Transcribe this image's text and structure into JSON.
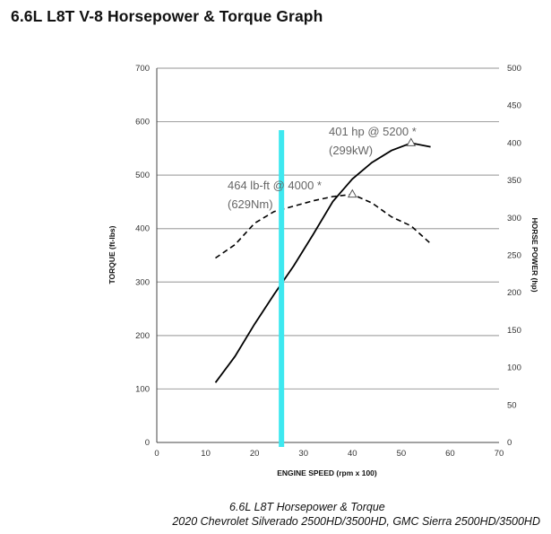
{
  "title": "6.6L L8T V-8 Horsepower & Torque Graph",
  "caption": {
    "line1": "6.6L L8T Horsepower & Torque",
    "line2": "2020 Chevrolet Silverado 2500HD/3500HD, GMC Sierra 2500HD/3500HD"
  },
  "chart_data": {
    "type": "line",
    "xlabel": "ENGINE SPEED (rpm x 100)",
    "ylabel": "TORQUE (ft-lbs)",
    "y2label": "HORSE POWER (hp)",
    "xlim": [
      0,
      70
    ],
    "ylim": [
      0,
      700
    ],
    "y2lim": [
      0,
      500
    ],
    "x_ticks": [
      0,
      10,
      20,
      30,
      40,
      50,
      60,
      70
    ],
    "y_ticks": [
      0,
      100,
      200,
      300,
      400,
      500,
      600,
      700
    ],
    "y2_ticks": [
      0,
      50,
      100,
      150,
      200,
      250,
      300,
      350,
      400,
      450,
      500
    ],
    "grid": "horizontal",
    "series": [
      {
        "axis": "right",
        "style": "solid",
        "color": "#000000",
        "x": [
          12,
          16,
          20,
          24,
          28,
          32,
          36,
          40,
          44,
          48,
          52,
          56
        ],
        "y": [
          80,
          115,
          158,
          198,
          236,
          278,
          322,
          352,
          374,
          390,
          400,
          395
        ]
      },
      {
        "axis": "left",
        "style": "dashed",
        "color": "#000000",
        "x": [
          12,
          16,
          20,
          24,
          28,
          32,
          36,
          40,
          44,
          48,
          52,
          56
        ],
        "y": [
          345,
          370,
          410,
          432,
          442,
          452,
          460,
          464,
          448,
          422,
          405,
          372
        ]
      }
    ],
    "peak_markers": [
      {
        "series": 0,
        "x": 52,
        "y": 400
      },
      {
        "series": 1,
        "x": 40,
        "y": 464
      }
    ],
    "annotations": [
      {
        "line1": "401 hp @ 5200 *",
        "line2": "(299kW)"
      },
      {
        "line1": "464 lb-ft @ 4000 *",
        "line2": "(629Nm)"
      }
    ],
    "highlight_line": {
      "x": 25.5,
      "color": "#3ee8f0"
    }
  }
}
